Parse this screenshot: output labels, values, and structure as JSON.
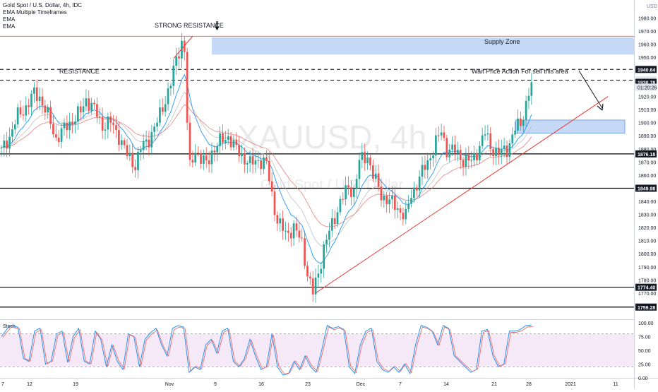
{
  "header": {
    "title": "Gold Spot / U.S. Dollar, 4h, IDC",
    "indicators": [
      "EMA Multiple Timeframes",
      "EMA",
      "EMA"
    ],
    "currency": "USD"
  },
  "watermark": {
    "symbol": "XAUUSD, 4h",
    "name": "Gold Spot / U.S. Dollar"
  },
  "annotations": {
    "strong_resistance": "STRONG RESISTANCE",
    "resistance": "RESISTANCE",
    "supply_zone": "Supply Zone",
    "wait_note": "Wait Price Action For sell this area"
  },
  "price_axis": {
    "ticks": [
      1980,
      1970,
      1960,
      1950,
      1940,
      1930,
      1920,
      1910,
      1900,
      1890,
      1880,
      1870,
      1860,
      1850,
      1840,
      1830,
      1820,
      1810,
      1800,
      1790,
      1780,
      1770,
      1760,
      1750
    ],
    "ticks_text": [
      "1980.00",
      "1970.00",
      "1960.00",
      "1950.00",
      "1940.00",
      "1930.00",
      "1920.00",
      "1910.00",
      "1900.00",
      "1890.00",
      "1880.00",
      "1870.00",
      "1860.00",
      "1850.00",
      "1840.00",
      "1830.00",
      "1820.00",
      "1810.00",
      "1800.00",
      "1790.00",
      "1780.00",
      "1770.00",
      "1760.00",
      "1750.00"
    ],
    "range": [
      1745,
      1985
    ],
    "level_labels": [
      {
        "value": 1940.64,
        "text": "1940.64",
        "style": "dark"
      },
      {
        "value": 1932.46,
        "text": "1932.46",
        "style": "grey"
      },
      {
        "value": 1930.78,
        "text": "1930.78",
        "style": "dark"
      },
      {
        "value": 1876.18,
        "text": "1876.18",
        "style": "dark"
      },
      {
        "value": 1849.98,
        "text": "1849.98",
        "style": "dark"
      },
      {
        "value": 1774.4,
        "text": "1774.40",
        "style": "dark"
      },
      {
        "value": 1759.28,
        "text": "1759.28",
        "style": "dark"
      }
    ],
    "countdown": "01:20:26"
  },
  "stoch": {
    "label": "Stoch",
    "ticks": [
      100,
      75,
      50,
      25,
      0
    ],
    "ticks_text": [
      "100.00",
      "75.00",
      "50.00",
      "25.00",
      "0.00"
    ],
    "upper_band": 80,
    "lower_band": 20
  },
  "time_axis": {
    "labels": [
      "7",
      "12",
      "19",
      "Nov",
      "9",
      "16",
      "23",
      "Dec",
      "7",
      "14",
      "21",
      "28",
      "2021",
      "11"
    ]
  },
  "chart_data": {
    "type": "candlestick",
    "symbol": "XAUUSD",
    "timeframe": "4h",
    "ylim": [
      1745,
      1985
    ],
    "close_path": [
      [
        0,
        1878
      ],
      [
        3,
        1890
      ],
      [
        6,
        1905
      ],
      [
        9,
        1912
      ],
      [
        12,
        1922
      ],
      [
        14,
        1920
      ],
      [
        17,
        1905
      ],
      [
        20,
        1888
      ],
      [
        23,
        1895
      ],
      [
        26,
        1902
      ],
      [
        29,
        1908
      ],
      [
        31,
        1918
      ],
      [
        34,
        1910
      ],
      [
        37,
        1898
      ],
      [
        40,
        1900
      ],
      [
        43,
        1890
      ],
      [
        46,
        1875
      ],
      [
        49,
        1868
      ],
      [
        51,
        1880
      ],
      [
        54,
        1888
      ],
      [
        57,
        1900
      ],
      [
        59,
        1912
      ],
      [
        62,
        1930
      ],
      [
        64,
        1948
      ],
      [
        66,
        1962
      ],
      [
        67,
        1955
      ],
      [
        68,
        1900
      ],
      [
        69,
        1865
      ],
      [
        71,
        1880
      ],
      [
        73,
        1872
      ],
      [
        75,
        1868
      ],
      [
        77,
        1878
      ],
      [
        80,
        1885
      ],
      [
        83,
        1890
      ],
      [
        85,
        1882
      ],
      [
        88,
        1875
      ],
      [
        91,
        1868
      ],
      [
        94,
        1872
      ],
      [
        97,
        1868
      ],
      [
        99,
        1845
      ],
      [
        101,
        1825
      ],
      [
        104,
        1815
      ],
      [
        107,
        1820
      ],
      [
        110,
        1808
      ],
      [
        112,
        1785
      ],
      [
        114,
        1770
      ],
      [
        116,
        1785
      ],
      [
        118,
        1805
      ],
      [
        121,
        1822
      ],
      [
        124,
        1840
      ],
      [
        127,
        1850
      ],
      [
        129,
        1848
      ],
      [
        131,
        1870
      ],
      [
        134,
        1875
      ],
      [
        136,
        1860
      ],
      [
        139,
        1845
      ],
      [
        142,
        1840
      ],
      [
        145,
        1835
      ],
      [
        148,
        1828
      ],
      [
        150,
        1845
      ],
      [
        153,
        1858
      ],
      [
        156,
        1870
      ],
      [
        159,
        1885
      ],
      [
        161,
        1893
      ],
      [
        163,
        1880
      ],
      [
        166,
        1878
      ],
      [
        169,
        1872
      ],
      [
        172,
        1870
      ],
      [
        174,
        1878
      ],
      [
        177,
        1892
      ],
      [
        179,
        1882
      ],
      [
        182,
        1876
      ],
      [
        185,
        1880
      ],
      [
        188,
        1895
      ],
      [
        190,
        1899
      ],
      [
        192,
        1915
      ],
      [
        194,
        1931
      ]
    ],
    "horizontal_levels": [
      1876.18,
      1849.98,
      1774.4,
      1759.28
    ],
    "dashed_levels": [
      1940.64,
      1932.46
    ],
    "zones": [
      {
        "name": "Supply Zone",
        "top": 1965,
        "bottom": 1952
      },
      {
        "name": "",
        "top": 1902,
        "bottom": 1892
      }
    ],
    "trendlines": [
      {
        "from": [
          115,
          1770
        ],
        "to": [
          222,
          1920
        ],
        "color": "#e53935"
      },
      {
        "from": [
          63,
          1949
        ],
        "to": [
          70,
          1966
        ],
        "color": "#e53935"
      }
    ],
    "stochastic": {
      "upper": 80,
      "lower": 20,
      "k_path": [
        [
          0,
          75
        ],
        [
          3,
          95
        ],
        [
          6,
          92
        ],
        [
          8,
          35
        ],
        [
          10,
          30
        ],
        [
          12,
          85
        ],
        [
          14,
          90
        ],
        [
          16,
          25
        ],
        [
          18,
          30
        ],
        [
          20,
          80
        ],
        [
          22,
          85
        ],
        [
          24,
          28
        ],
        [
          26,
          75
        ],
        [
          28,
          90
        ],
        [
          30,
          30
        ],
        [
          32,
          25
        ],
        [
          34,
          85
        ],
        [
          36,
          70
        ],
        [
          38,
          20
        ],
        [
          40,
          60
        ],
        [
          42,
          30
        ],
        [
          44,
          15
        ],
        [
          46,
          80
        ],
        [
          48,
          75
        ],
        [
          50,
          20
        ],
        [
          52,
          70
        ],
        [
          54,
          82
        ],
        [
          56,
          90
        ],
        [
          58,
          60
        ],
        [
          60,
          40
        ],
        [
          62,
          90
        ],
        [
          64,
          95
        ],
        [
          66,
          92
        ],
        [
          68,
          10
        ],
        [
          70,
          20
        ],
        [
          72,
          15
        ],
        [
          74,
          60
        ],
        [
          76,
          70
        ],
        [
          78,
          45
        ],
        [
          80,
          85
        ],
        [
          82,
          90
        ],
        [
          84,
          30
        ],
        [
          86,
          20
        ],
        [
          88,
          35
        ],
        [
          90,
          70
        ],
        [
          92,
          40
        ],
        [
          94,
          15
        ],
        [
          96,
          20
        ],
        [
          98,
          80
        ],
        [
          100,
          20
        ],
        [
          102,
          5
        ],
        [
          104,
          8
        ],
        [
          106,
          30
        ],
        [
          108,
          15
        ],
        [
          110,
          40
        ],
        [
          112,
          20
        ],
        [
          114,
          10
        ],
        [
          116,
          50
        ],
        [
          118,
          95
        ],
        [
          120,
          90
        ],
        [
          122,
          93
        ],
        [
          124,
          88
        ],
        [
          126,
          20
        ],
        [
          128,
          8
        ],
        [
          130,
          60
        ],
        [
          132,
          85
        ],
        [
          134,
          90
        ],
        [
          136,
          30
        ],
        [
          138,
          15
        ],
        [
          140,
          10
        ],
        [
          142,
          20
        ],
        [
          144,
          10
        ],
        [
          146,
          25
        ],
        [
          148,
          8
        ],
        [
          150,
          60
        ],
        [
          152,
          95
        ],
        [
          154,
          92
        ],
        [
          156,
          85
        ],
        [
          158,
          60
        ],
        [
          160,
          95
        ],
        [
          162,
          90
        ],
        [
          164,
          40
        ],
        [
          166,
          30
        ],
        [
          168,
          20
        ],
        [
          170,
          10
        ],
        [
          172,
          15
        ],
        [
          174,
          85
        ],
        [
          176,
          88
        ],
        [
          178,
          40
        ],
        [
          180,
          20
        ],
        [
          182,
          25
        ],
        [
          184,
          85
        ],
        [
          186,
          85
        ],
        [
          188,
          88
        ],
        [
          190,
          95
        ],
        [
          192,
          96
        ]
      ]
    }
  }
}
